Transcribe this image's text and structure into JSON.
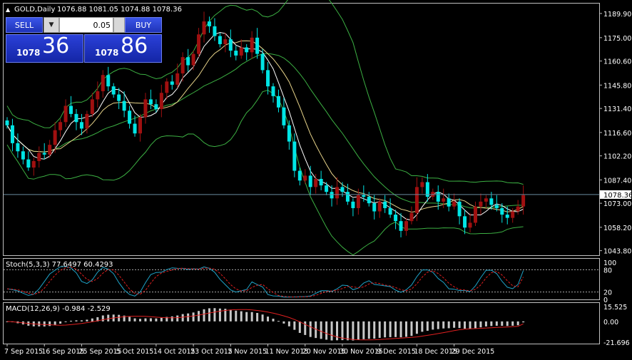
{
  "header": {
    "symbol": "GOLD,Daily",
    "ohlc": "1076.88 1081.05 1074.88 1078.36"
  },
  "trade_panel": {
    "sell_label": "SELL",
    "buy_label": "BUY",
    "lot": "0.05",
    "sell_price_small": "1078",
    "sell_price_big": "36",
    "buy_price_small": "1078",
    "buy_price_big": "86"
  },
  "colors": {
    "bull": "#a01010",
    "bear": "#00e5e5",
    "bollinger": "#3cb043",
    "ma_fast": "#ffffff",
    "ma_slow": "#e8d48a",
    "stoch_main": "#1fa3c8",
    "stoch_signal": "#e02020",
    "macd_hist": "#c8c8c8",
    "macd_signal": "#e02020",
    "current_price_line": "#6a8ca0"
  },
  "chart_data": {
    "type": "candlestick",
    "title": "GOLD,Daily",
    "current_price": 1078.36,
    "current_price_label": "1078.36",
    "y_ticks": [
      "1189.90",
      "1175.00",
      "1160.60",
      "1145.80",
      "1131.40",
      "1116.60",
      "1102.20",
      "1087.40",
      "1073.00",
      "1058.20",
      "1043.80"
    ],
    "y_tick_values": [
      1189.9,
      1175.0,
      1160.6,
      1145.8,
      1131.4,
      1116.6,
      1102.2,
      1087.4,
      1073.0,
      1058.2,
      1043.8
    ],
    "ylim": [
      1041,
      1196
    ],
    "x_ticks": [
      "7 Sep 2015",
      "16 Sep 2015",
      "25 Sep 2015",
      "5 Oct 2015",
      "14 Oct 2015",
      "23 Oct 2015",
      "2 Nov 2015",
      "11 Nov 2015",
      "20 Nov 2015",
      "30 Nov 2015",
      "9 Dec 2015",
      "18 Dec 2015",
      "29 Dec 2015"
    ],
    "x_tick_bars": [
      0,
      7,
      14,
      21,
      28,
      35,
      42,
      49,
      56,
      63,
      70,
      77,
      84
    ],
    "closes": [
      1121,
      1110,
      1105,
      1100,
      1095,
      1099,
      1104,
      1103,
      1109,
      1118,
      1123,
      1133,
      1128,
      1123,
      1119,
      1128,
      1137,
      1142,
      1152,
      1145,
      1140,
      1136,
      1130,
      1122,
      1116,
      1126,
      1137,
      1134,
      1131,
      1141,
      1148,
      1146,
      1153,
      1163,
      1158,
      1165,
      1177,
      1185,
      1182,
      1176,
      1171,
      1174,
      1167,
      1164,
      1169,
      1166,
      1175,
      1165,
      1155,
      1145,
      1139,
      1132,
      1121,
      1111,
      1093,
      1087,
      1090,
      1083,
      1088,
      1084,
      1080,
      1076,
      1083,
      1080,
      1074,
      1070,
      1078,
      1077,
      1073,
      1068,
      1074,
      1070,
      1066,
      1062,
      1056,
      1062,
      1067,
      1083,
      1086,
      1077,
      1080,
      1074,
      1076,
      1071,
      1074,
      1065,
      1058,
      1061,
      1071,
      1074,
      1076,
      1072,
      1070,
      1066,
      1064,
      1068,
      1071,
      1078
    ],
    "ma_fast_period": 5,
    "ma_slow_period": 10,
    "bollinger_period": 20,
    "bollinger_dev": 2,
    "indicators": [
      {
        "name": "Stoch(5,3,3)",
        "label": "Stoch(5,3,3) 77.6497 60.4293",
        "main": 77.6497,
        "signal": 60.4293,
        "ylim": [
          0,
          100
        ],
        "levels": [
          80,
          20
        ],
        "y_ticks": [
          "100",
          "80",
          "20",
          "0"
        ]
      },
      {
        "name": "MACD(12,26,9)",
        "label": "MACD(12,26,9) -0.984 -2.529",
        "main": -0.984,
        "signal": -2.529,
        "ylim": [
          -21.696,
          15.525
        ],
        "y_ticks": [
          "15.525",
          "0.00",
          "-21.696"
        ]
      }
    ]
  }
}
